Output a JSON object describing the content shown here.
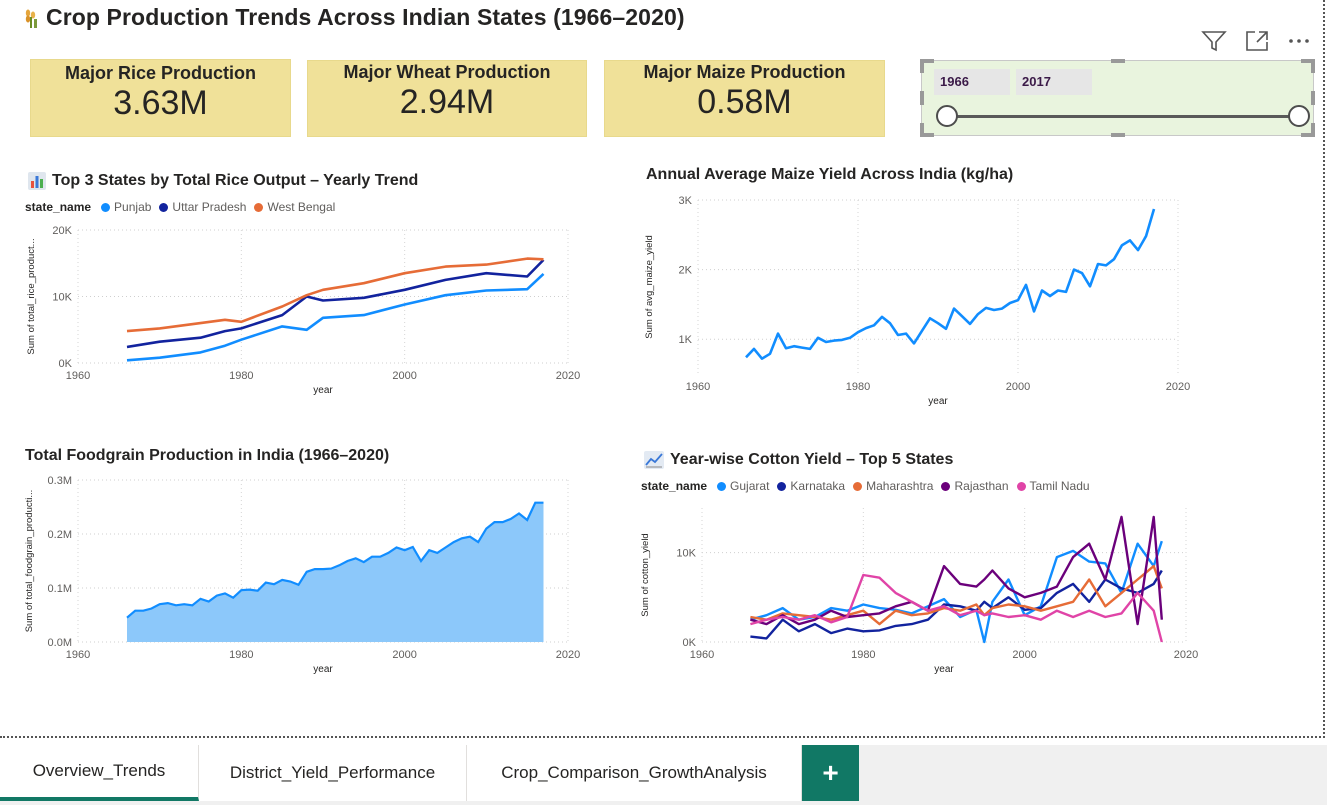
{
  "page": {
    "title": "Crop Production Trends Across Indian States (1966–2020)",
    "title_icon": "wheat-icon"
  },
  "toolbar": {
    "icons": [
      "filter-icon",
      "focus-mode-icon",
      "more-options-icon"
    ]
  },
  "cards": [
    {
      "label": "Major Rice Production",
      "value": "3.63M"
    },
    {
      "label": "Major Wheat Production",
      "value": "2.94M"
    },
    {
      "label": "Major Maize Production",
      "value": "0.58M"
    }
  ],
  "slicer": {
    "start": "1966",
    "end": "2017"
  },
  "colors": {
    "punjab": "#118DFF",
    "uttar_pradesh": "#12239E",
    "west_bengal": "#E66C37",
    "gujarat": "#118DFF",
    "karnataka": "#12239E",
    "maharashtra": "#E66C37",
    "rajasthan": "#6B007B",
    "tamil_nadu": "#E044A7",
    "kpi_card": "#F0E199",
    "slicer_bg": "#E9F4DE",
    "tab_accent": "#117865"
  },
  "charts": {
    "rice": {
      "title": "Top 3 States by Total Rice Output – Yearly Trend",
      "icon": "bar-chart-icon",
      "legend_title": "state_name",
      "legend": [
        "Punjab",
        "Uttar Pradesh",
        "West Bengal"
      ],
      "xlabel": "year",
      "ylabel": "Sum of total_rice_product..."
    },
    "maize": {
      "title": "Annual Average Maize Yield Across India (kg/ha)",
      "xlabel": "year",
      "ylabel": "Sum of avg_maize_yield"
    },
    "foodgrain": {
      "title": "Total Foodgrain Production in India (1966–2020)",
      "xlabel": "year",
      "ylabel": "Sum of total_foodgrain_producti..."
    },
    "cotton": {
      "title": "Year-wise Cotton Yield – Top 5 States",
      "icon": "line-chart-icon",
      "legend_title": "state_name",
      "legend": [
        "Gujarat",
        "Karnataka",
        "Maharashtra",
        "Rajasthan",
        "Tamil Nadu"
      ],
      "xlabel": "year",
      "ylabel": "Sum of cotton_yield"
    }
  },
  "chart_data": [
    {
      "type": "line",
      "title": "Top 3 States by Total Rice Output – Yearly Trend",
      "xlabel": "year",
      "ylabel": "Sum of total_rice_product...",
      "xlim": [
        1960,
        2020
      ],
      "ylim": [
        0,
        20000
      ],
      "xticks": [
        "1960",
        "1980",
        "2000",
        "2020"
      ],
      "yticks": [
        "0K",
        "10K",
        "20K"
      ],
      "grid": true,
      "legend": "top-left",
      "x": [
        1966,
        1970,
        1975,
        1978,
        1980,
        1985,
        1988,
        1990,
        1995,
        2000,
        2005,
        2010,
        2015,
        2017
      ],
      "series": [
        {
          "name": "Punjab",
          "values": [
            400,
            800,
            1600,
            2600,
            3500,
            5500,
            5000,
            6800,
            7200,
            8800,
            10200,
            10900,
            11100,
            13400
          ]
        },
        {
          "name": "Uttar Pradesh",
          "values": [
            2400,
            3200,
            3800,
            4800,
            5200,
            7200,
            10000,
            9400,
            9800,
            11000,
            12500,
            13500,
            13000,
            15500
          ]
        },
        {
          "name": "West Bengal",
          "values": [
            4800,
            5200,
            6000,
            6500,
            6200,
            8500,
            10200,
            11000,
            12000,
            13500,
            14500,
            14800,
            15700,
            15600
          ]
        }
      ]
    },
    {
      "type": "line",
      "title": "Annual Average Maize Yield Across India (kg/ha)",
      "xlabel": "year",
      "ylabel": "Sum of avg_maize_yield",
      "xlim": [
        1960,
        2020
      ],
      "ylim": [
        500,
        3000
      ],
      "xticks": [
        "1960",
        "1980",
        "2000",
        "2020"
      ],
      "yticks": [
        "1K",
        "2K",
        "3K"
      ],
      "grid": true,
      "x": [
        1966,
        1967,
        1968,
        1969,
        1970,
        1971,
        1972,
        1973,
        1974,
        1975,
        1976,
        1977,
        1978,
        1979,
        1980,
        1981,
        1982,
        1983,
        1984,
        1985,
        1986,
        1987,
        1988,
        1989,
        1990,
        1991,
        1992,
        1993,
        1994,
        1995,
        1996,
        1997,
        1998,
        1999,
        2000,
        2001,
        2002,
        2003,
        2004,
        2005,
        2006,
        2007,
        2008,
        2009,
        2010,
        2011,
        2012,
        2013,
        2014,
        2015,
        2016,
        2017
      ],
      "series": [
        {
          "name": "",
          "values": [
            740,
            860,
            720,
            790,
            1080,
            870,
            900,
            880,
            860,
            1020,
            960,
            980,
            990,
            1020,
            1100,
            1160,
            1200,
            1320,
            1230,
            1060,
            1080,
            940,
            1120,
            1300,
            1230,
            1150,
            1440,
            1330,
            1220,
            1360,
            1450,
            1420,
            1440,
            1520,
            1560,
            1780,
            1400,
            1700,
            1620,
            1700,
            1680,
            2000,
            1950,
            1760,
            2080,
            2060,
            2150,
            2350,
            2420,
            2280,
            2480,
            2870
          ]
        }
      ]
    },
    {
      "type": "area",
      "title": "Total Foodgrain Production in India (1966–2020)",
      "xlabel": "year",
      "ylabel": "Sum of total_foodgrain_producti...",
      "xlim": [
        1960,
        2020
      ],
      "ylim": [
        0,
        300000
      ],
      "xticks": [
        "1960",
        "1980",
        "2000",
        "2020"
      ],
      "yticks": [
        "0.0M",
        "0.1M",
        "0.2M",
        "0.3M"
      ],
      "grid": true,
      "x": [
        1966,
        1967,
        1968,
        1969,
        1970,
        1971,
        1972,
        1973,
        1974,
        1975,
        1976,
        1977,
        1978,
        1979,
        1980,
        1981,
        1982,
        1983,
        1984,
        1985,
        1986,
        1987,
        1988,
        1989,
        1990,
        1991,
        1992,
        1993,
        1994,
        1995,
        1996,
        1997,
        1998,
        1999,
        2000,
        2001,
        2002,
        2003,
        2004,
        2005,
        2006,
        2007,
        2008,
        2009,
        2010,
        2011,
        2012,
        2013,
        2014,
        2015,
        2016,
        2017
      ],
      "series": [
        {
          "name": "",
          "values": [
            45000,
            58000,
            58000,
            62000,
            70000,
            72000,
            68000,
            70000,
            68000,
            80000,
            75000,
            86000,
            90000,
            82000,
            96000,
            97000,
            95000,
            110000,
            107000,
            115000,
            112000,
            106000,
            130000,
            135000,
            135000,
            136000,
            142000,
            150000,
            155000,
            148000,
            158000,
            158000,
            165000,
            175000,
            170000,
            176000,
            150000,
            170000,
            165000,
            175000,
            185000,
            192000,
            195000,
            185000,
            210000,
            222000,
            222000,
            228000,
            238000,
            226000,
            258000,
            258000
          ]
        }
      ]
    },
    {
      "type": "line",
      "title": "Year-wise Cotton Yield – Top 5 States",
      "xlabel": "year",
      "ylabel": "Sum of cotton_yield",
      "xlim": [
        1960,
        2020
      ],
      "ylim": [
        0,
        15000
      ],
      "xticks": [
        "1960",
        "1980",
        "2000",
        "2020"
      ],
      "yticks": [
        "0K",
        "10K"
      ],
      "grid": true,
      "legend": "top-left",
      "x": [
        1966,
        1968,
        1970,
        1972,
        1974,
        1976,
        1978,
        1980,
        1982,
        1984,
        1986,
        1988,
        1990,
        1992,
        1994,
        1995,
        1996,
        1998,
        2000,
        2002,
        2004,
        2006,
        2008,
        2010,
        2012,
        2014,
        2016,
        2017
      ],
      "series": [
        {
          "name": "Gujarat",
          "values": [
            2500,
            3000,
            3800,
            2500,
            2800,
            3800,
            3500,
            4200,
            3800,
            3600,
            3200,
            4000,
            4800,
            2800,
            3600,
            0,
            4500,
            7000,
            3000,
            4000,
            9500,
            10200,
            9000,
            8800,
            5500,
            11000,
            8500,
            11300
          ]
        },
        {
          "name": "Karnataka",
          "values": [
            600,
            400,
            2500,
            1200,
            2000,
            1000,
            1500,
            1200,
            1300,
            1800,
            2000,
            2500,
            4200,
            4000,
            3500,
            4500,
            3800,
            5000,
            3600,
            3800,
            5500,
            6500,
            4500,
            7000,
            6000,
            5500,
            6500,
            8000
          ]
        },
        {
          "name": "Maharashtra",
          "values": [
            2800,
            2500,
            3200,
            3000,
            2800,
            2500,
            3000,
            3500,
            2000,
            3500,
            3000,
            3200,
            3800,
            3500,
            4200,
            3000,
            3800,
            4200,
            4000,
            3500,
            4000,
            4500,
            7000,
            4000,
            5500,
            7000,
            8500,
            6000
          ]
        },
        {
          "name": "Rajasthan",
          "values": [
            2500,
            2000,
            3000,
            2000,
            2500,
            3500,
            2800,
            3000,
            3200,
            4000,
            4500,
            3500,
            8500,
            6500,
            6200,
            7000,
            8000,
            6000,
            5000,
            5500,
            6200,
            9500,
            11000,
            7000,
            14000,
            2000,
            14000,
            2500
          ]
        },
        {
          "name": "Tamil Nadu",
          "values": [
            2000,
            2500,
            2800,
            2500,
            3000,
            2200,
            2800,
            7500,
            7200,
            5500,
            4500,
            3500,
            4000,
            3000,
            3500,
            3000,
            3200,
            2800,
            3000,
            2500,
            3500,
            2800,
            3500,
            2800,
            3200,
            5500,
            3500,
            0
          ]
        }
      ]
    }
  ],
  "tabs": [
    {
      "label": "Overview_Trends",
      "active": true
    },
    {
      "label": "District_Yield_Performance",
      "active": false
    },
    {
      "label": "Crop_Comparison_GrowthAnalysis",
      "active": false
    }
  ],
  "add_tab_label": "+"
}
